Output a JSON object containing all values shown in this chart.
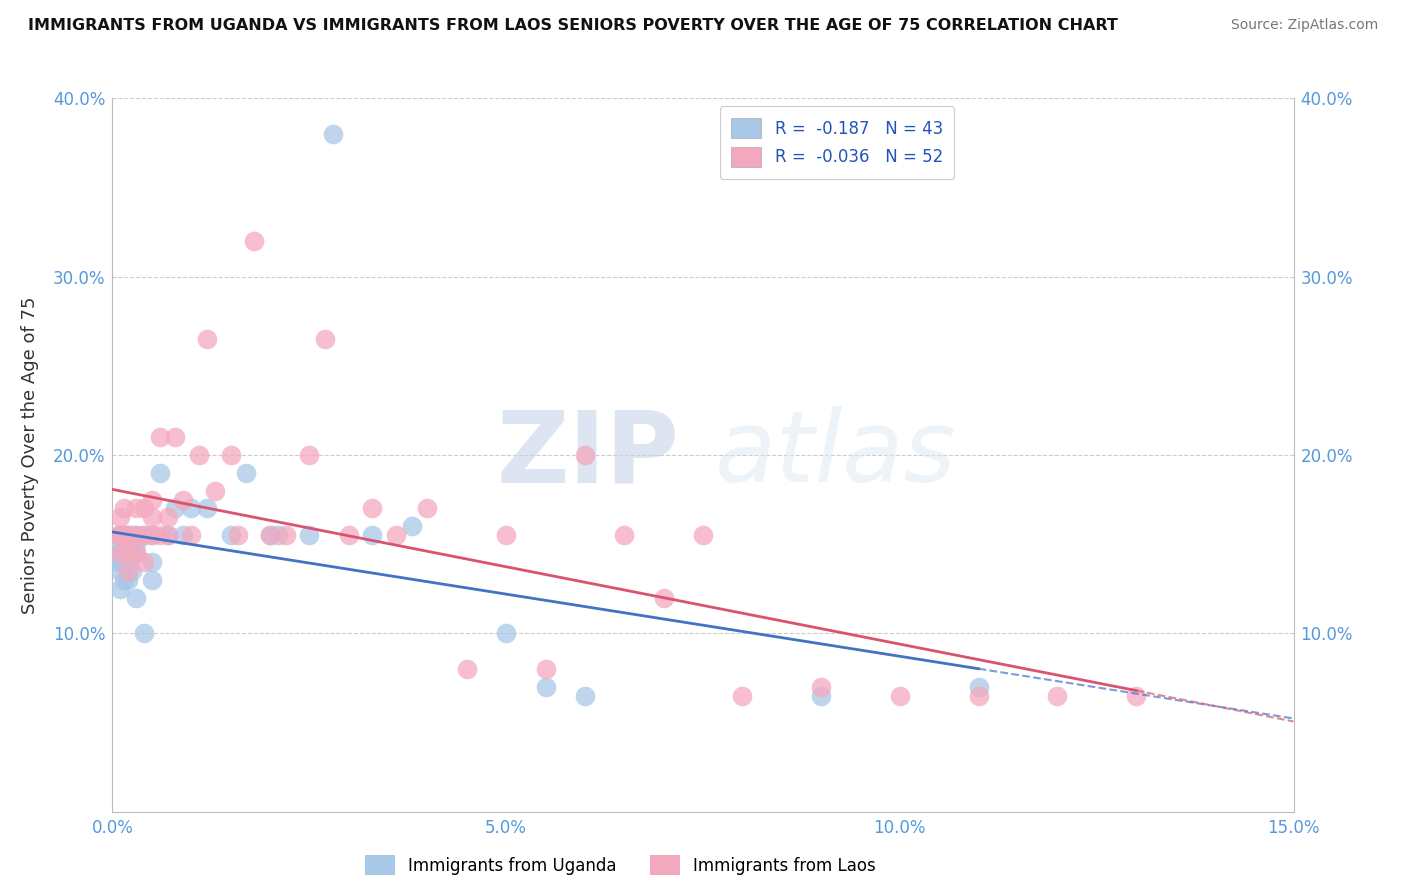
{
  "title": "IMMIGRANTS FROM UGANDA VS IMMIGRANTS FROM LAOS SENIORS POVERTY OVER THE AGE OF 75 CORRELATION CHART",
  "source": "Source: ZipAtlas.com",
  "ylabel": "Seniors Poverty Over the Age of 75",
  "xlim": [
    0,
    0.15
  ],
  "ylim": [
    0,
    0.4
  ],
  "xticks": [
    0.0,
    0.05,
    0.1,
    0.15
  ],
  "xticklabels": [
    "0.0%",
    "5.0%",
    "10.0%",
    "15.0%"
  ],
  "yticks": [
    0.1,
    0.2,
    0.3,
    0.4
  ],
  "yticklabels": [
    "10.0%",
    "20.0%",
    "30.0%",
    "40.0%"
  ],
  "uganda_color": "#a8c8e8",
  "laos_color": "#f4a8be",
  "uganda_line_color": "#4472c4",
  "laos_line_color": "#d9546e",
  "uganda_R": -0.187,
  "uganda_N": 43,
  "laos_R": -0.036,
  "laos_N": 52,
  "legend_R_color": "#2255bb",
  "watermark_zip": "ZIP",
  "watermark_atlas": "atlas",
  "uganda_x": [
    0.0008,
    0.0008,
    0.0008,
    0.001,
    0.001,
    0.001,
    0.001,
    0.0015,
    0.0015,
    0.002,
    0.002,
    0.002,
    0.002,
    0.0025,
    0.0025,
    0.003,
    0.003,
    0.003,
    0.003,
    0.004,
    0.004,
    0.005,
    0.005,
    0.005,
    0.006,
    0.007,
    0.008,
    0.009,
    0.01,
    0.012,
    0.015,
    0.017,
    0.02,
    0.021,
    0.025,
    0.028,
    0.033,
    0.038,
    0.05,
    0.055,
    0.06,
    0.09,
    0.11
  ],
  "uganda_y": [
    0.155,
    0.15,
    0.14,
    0.145,
    0.14,
    0.135,
    0.125,
    0.155,
    0.13,
    0.155,
    0.15,
    0.14,
    0.13,
    0.155,
    0.135,
    0.155,
    0.15,
    0.145,
    0.12,
    0.155,
    0.1,
    0.155,
    0.14,
    0.13,
    0.19,
    0.155,
    0.17,
    0.155,
    0.17,
    0.17,
    0.155,
    0.19,
    0.155,
    0.155,
    0.155,
    0.38,
    0.155,
    0.16,
    0.1,
    0.07,
    0.065,
    0.065,
    0.07
  ],
  "laos_x": [
    0.0008,
    0.001,
    0.001,
    0.001,
    0.0015,
    0.0015,
    0.002,
    0.002,
    0.002,
    0.003,
    0.003,
    0.003,
    0.004,
    0.004,
    0.004,
    0.005,
    0.005,
    0.005,
    0.006,
    0.006,
    0.007,
    0.007,
    0.008,
    0.009,
    0.01,
    0.011,
    0.012,
    0.013,
    0.015,
    0.016,
    0.018,
    0.02,
    0.022,
    0.025,
    0.027,
    0.03,
    0.033,
    0.036,
    0.04,
    0.045,
    0.05,
    0.055,
    0.06,
    0.065,
    0.07,
    0.075,
    0.08,
    0.09,
    0.1,
    0.11,
    0.12,
    0.13
  ],
  "laos_y": [
    0.155,
    0.155,
    0.165,
    0.145,
    0.155,
    0.17,
    0.155,
    0.145,
    0.135,
    0.17,
    0.155,
    0.145,
    0.17,
    0.155,
    0.14,
    0.165,
    0.155,
    0.175,
    0.21,
    0.155,
    0.165,
    0.155,
    0.21,
    0.175,
    0.155,
    0.2,
    0.265,
    0.18,
    0.2,
    0.155,
    0.32,
    0.155,
    0.155,
    0.2,
    0.265,
    0.155,
    0.17,
    0.155,
    0.17,
    0.08,
    0.155,
    0.08,
    0.2,
    0.155,
    0.12,
    0.155,
    0.065,
    0.07,
    0.065,
    0.065,
    0.065,
    0.065
  ]
}
